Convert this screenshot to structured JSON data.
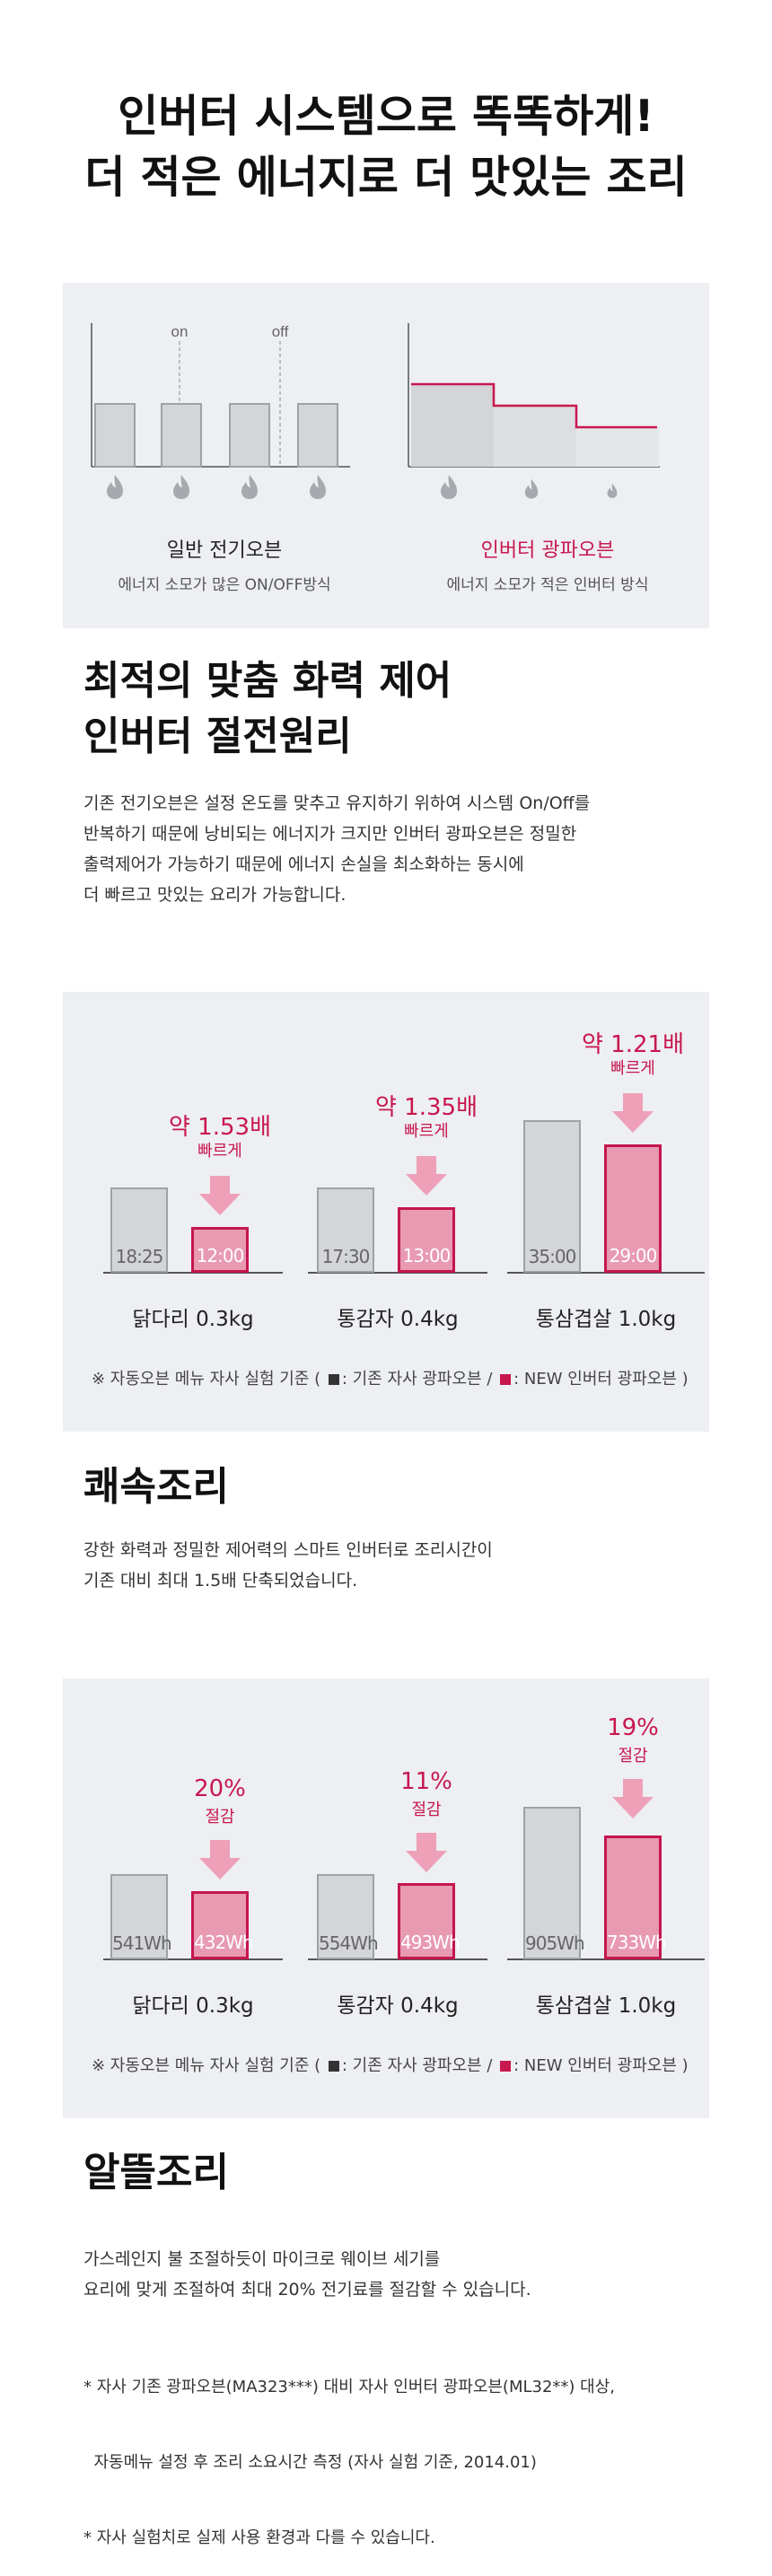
{
  "hero": {
    "line1": "인버터 시스템으로 똑똑하게!",
    "line2": "더 적은 에너지로 더 맛있는 조리"
  },
  "diagram": {
    "on_label": "on",
    "off_label": "off",
    "left_title": "일반 전기오븐",
    "left_sub": "에너지 소모가 많은 ON/OFF방식",
    "right_title": "인버터 광파오븐",
    "right_sub": "에너지 소모가 적은 인버터 방식",
    "icons": [
      "flame-icon"
    ],
    "colors": {
      "accent": "#c8174f",
      "gray_bar": "#d3d5d8"
    }
  },
  "section1": {
    "title1": "최적의 맞춤 화력 제어",
    "title2": "인버터 절전원리",
    "body": [
      "기존 전기오븐은 설정 온도를 맞추고 유지하기 위하여 시스템 On/Off를",
      "반복하기 때문에 낭비되는 에너지가 크지만 인버터 광파오븐은 정밀한",
      "출력제어가 가능하기 때문에 에너지 손실을 최소화하는 동시에",
      "더 빠르고 맛있는 요리가 가능합니다."
    ]
  },
  "chart_data": [
    {
      "type": "bar",
      "categories": [
        "닭다리 0.3kg",
        "통감자 0.4kg",
        "통삼겹살 1.0kg"
      ],
      "series": [
        {
          "name": "기존 자사 광파오븐",
          "labels": [
            "18:25",
            "17:30",
            "35:00"
          ],
          "values_min": [
            18.42,
            17.5,
            35
          ]
        },
        {
          "name": "NEW 인버터 광파오븐",
          "labels": [
            "12:00",
            "13:00",
            "29:00"
          ],
          "values_min": [
            12,
            13,
            29
          ]
        }
      ],
      "callouts": [
        {
          "big": "약 1.53배",
          "small": "빠르게"
        },
        {
          "big": "약 1.35배",
          "small": "빠르게"
        },
        {
          "big": "약 1.21배",
          "small": "빠르게"
        }
      ],
      "note": {
        "prefix": "※ 자동오븐 메뉴 자사 실험 기준 (",
        "legend_gray": ": 기존 자사 광파오븐 /",
        "legend_pink": ": NEW 인버터 광파오븐 )"
      }
    },
    {
      "type": "bar",
      "categories": [
        "닭다리 0.3kg",
        "통감자 0.4kg",
        "통삼겹살 1.0kg"
      ],
      "series": [
        {
          "name": "기존 자사 광파오븐",
          "labels": [
            "541Wh",
            "554Wh",
            "905Wh"
          ],
          "values": [
            541,
            554,
            905
          ]
        },
        {
          "name": "NEW 인버터 광파오븐",
          "labels": [
            "432Wh",
            "493Wh",
            "733Wh"
          ],
          "values": [
            432,
            493,
            733
          ]
        }
      ],
      "callouts": [
        {
          "big": "20%",
          "small": "절감"
        },
        {
          "big": "11%",
          "small": "절감"
        },
        {
          "big": "19%",
          "small": "절감"
        }
      ],
      "note": {
        "prefix": "※ 자동오븐 메뉴 자사 실험 기준 (",
        "legend_gray": ": 기존 자사 광파오븐 /",
        "legend_pink": ": NEW 인버터 광파오븐 )"
      }
    }
  ],
  "section2": {
    "title": "쾌속조리",
    "body": [
      "강한 화력과 정밀한 제어력의 스마트 인버터로 조리시간이",
      "기존 대비 최대 1.5배 단축되었습니다."
    ]
  },
  "section3": {
    "title": "알뜰조리",
    "body": [
      "가스레인지 불 조절하듯이 마이크로 웨이브 세기를",
      "요리에 맞게 조절하여 최대 20% 전기료를 절감할 수 있습니다."
    ],
    "footnotes": [
      "* 자사 기존 광파오븐(MA323***) 대비 자사 인버터 광파오븐(ML32**) 대상,",
      "  자동메뉴 설정 후 조리 소요시간 측정 (자사 실험 기준, 2014.01)",
      "* 자사 실험치로 실제 사용 환경과 다를 수 있습니다."
    ]
  }
}
